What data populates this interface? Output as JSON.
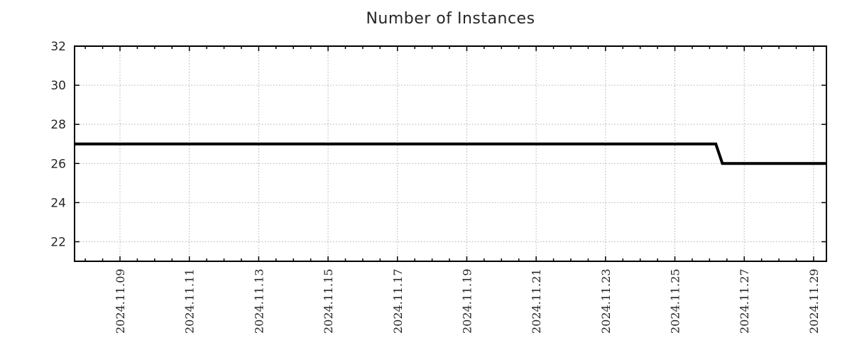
{
  "chart_data": {
    "type": "line",
    "title": "Number of Instances",
    "xlabel": "",
    "ylabel": "",
    "legend": "none",
    "grid": "dotted-both-axes",
    "frame": "full-box-with-mirrored-ticks",
    "x_tick_labels": [
      "2024.11.09",
      "2024.11.11",
      "2024.11.13",
      "2024.11.15",
      "2024.11.17",
      "2024.11.19",
      "2024.11.21",
      "2024.11.23",
      "2024.11.25",
      "2024.11.27",
      "2024.11.29"
    ],
    "x_tick_label_rotation_deg": 90,
    "x_major_step_days": 2,
    "x_minor_step_days": 0.5,
    "xlim_days_relative_to_first_tick": [
      -1.31,
      20.37
    ],
    "y_ticks": [
      22,
      24,
      26,
      28,
      30,
      32
    ],
    "ylim": [
      21,
      32
    ],
    "colors": {
      "line": "#000000",
      "grid": "#b0b0b0",
      "frame": "#000000",
      "text": "#262626"
    },
    "series": [
      {
        "name": "Number of Instances",
        "color": "#000000",
        "line_width": 4,
        "points": [
          {
            "x_approx": "2024-11-07 ~16:30",
            "day": -1.31,
            "y": 27
          },
          {
            "x_approx": "2024-11-26 ~04:20",
            "day": 17.18,
            "y": 27
          },
          {
            "x_approx": "2024-11-26 ~08:50",
            "day": 17.37,
            "y": 26
          },
          {
            "x_approx": "2024-11-29 ~08:50",
            "day": 20.37,
            "y": 26
          }
        ]
      }
    ]
  }
}
